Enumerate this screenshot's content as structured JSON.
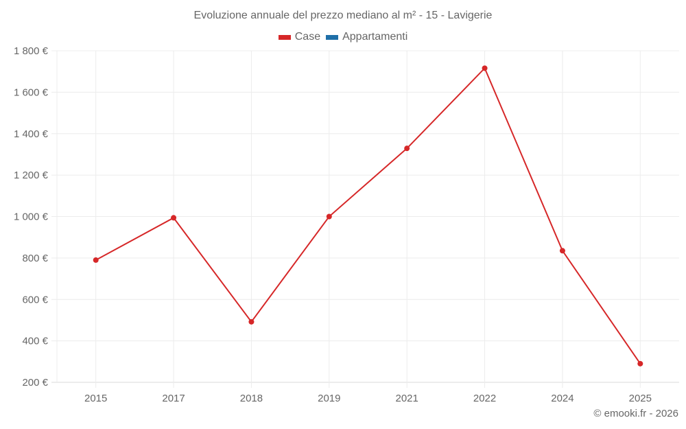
{
  "title": "Evoluzione annuale del prezzo mediano al m² - 15 - Lavigerie",
  "legend": [
    {
      "label": "Case",
      "color": "#d62728"
    },
    {
      "label": "Appartamenti",
      "color": "#1f6fa8"
    }
  ],
  "credit": "© emooki.fr - 2026",
  "chart_data": {
    "type": "line",
    "title": "Evoluzione annuale del prezzo mediano al m² - 15 - Lavigerie",
    "xlabel": "",
    "ylabel": "",
    "categories": [
      "2015",
      "2017",
      "2018",
      "2019",
      "2021",
      "2022",
      "2024",
      "2025"
    ],
    "series": [
      {
        "name": "Case",
        "color": "#d62728",
        "values": [
          790,
          994,
          492,
          1000,
          1329,
          1716,
          835,
          290
        ]
      },
      {
        "name": "Appartamenti",
        "color": "#1f6fa8",
        "values": []
      }
    ],
    "ylim": [
      200,
      1800
    ],
    "yticks": [
      200,
      400,
      600,
      800,
      1000,
      1200,
      1400,
      1600,
      1800
    ],
    "ytick_labels": [
      "200 €",
      "400 €",
      "600 €",
      "800 €",
      "1 000 €",
      "1 200 €",
      "1 400 €",
      "1 600 €",
      "1 800 €"
    ],
    "grid": true,
    "legend_position": "top"
  }
}
